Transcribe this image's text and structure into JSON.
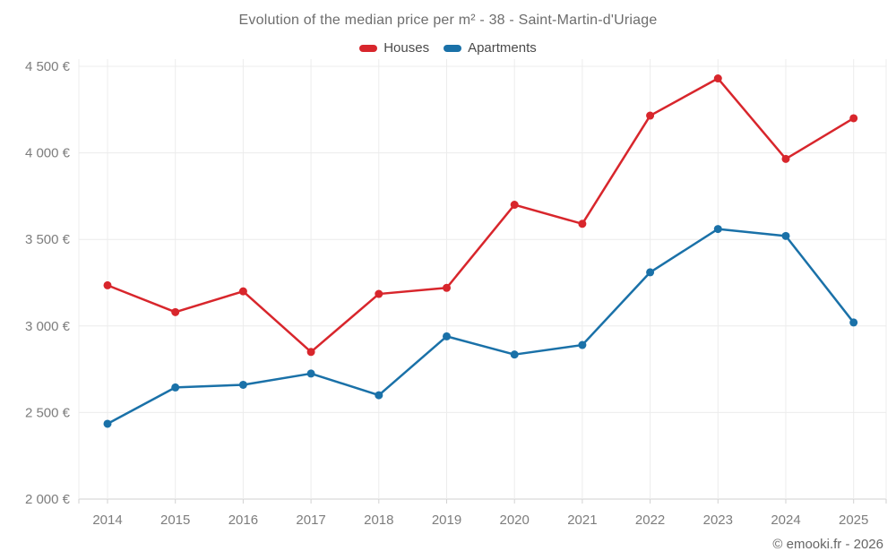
{
  "footer": {
    "copyright": "© emooki.fr - 2026"
  },
  "colors": {
    "houses": "#d8262c",
    "apartments": "#1a71a8",
    "grid": "#ececec",
    "axis": "#d2d2d2",
    "tick_text": "#7d7d7d"
  },
  "chart_data": {
    "type": "line",
    "title": "Evolution of the median price per m² - 38 - Saint-Martin-d'Uriage",
    "categories": [
      "2014",
      "2015",
      "2016",
      "2017",
      "2018",
      "2019",
      "2020",
      "2021",
      "2022",
      "2023",
      "2024",
      "2025"
    ],
    "series": [
      {
        "name": "Houses",
        "color": "#d8262c",
        "values": [
          3235,
          3080,
          3200,
          2850,
          3185,
          3220,
          3700,
          3590,
          4215,
          4430,
          3965,
          4200
        ]
      },
      {
        "name": "Apartments",
        "color": "#1a71a8",
        "values": [
          2435,
          2645,
          2660,
          2725,
          2600,
          2940,
          2835,
          2890,
          3310,
          3560,
          3520,
          3020
        ]
      }
    ],
    "ylim": [
      2000,
      4500
    ],
    "y_ticks": [
      {
        "value": 2000,
        "label": "2 000 €"
      },
      {
        "value": 2500,
        "label": "2 500 €"
      },
      {
        "value": 3000,
        "label": "3 000 €"
      },
      {
        "value": 3500,
        "label": "3 500 €"
      },
      {
        "value": 4000,
        "label": "4 000 €"
      },
      {
        "value": 4500,
        "label": "4 500 €"
      }
    ],
    "grid": true,
    "legend_position": "top"
  }
}
